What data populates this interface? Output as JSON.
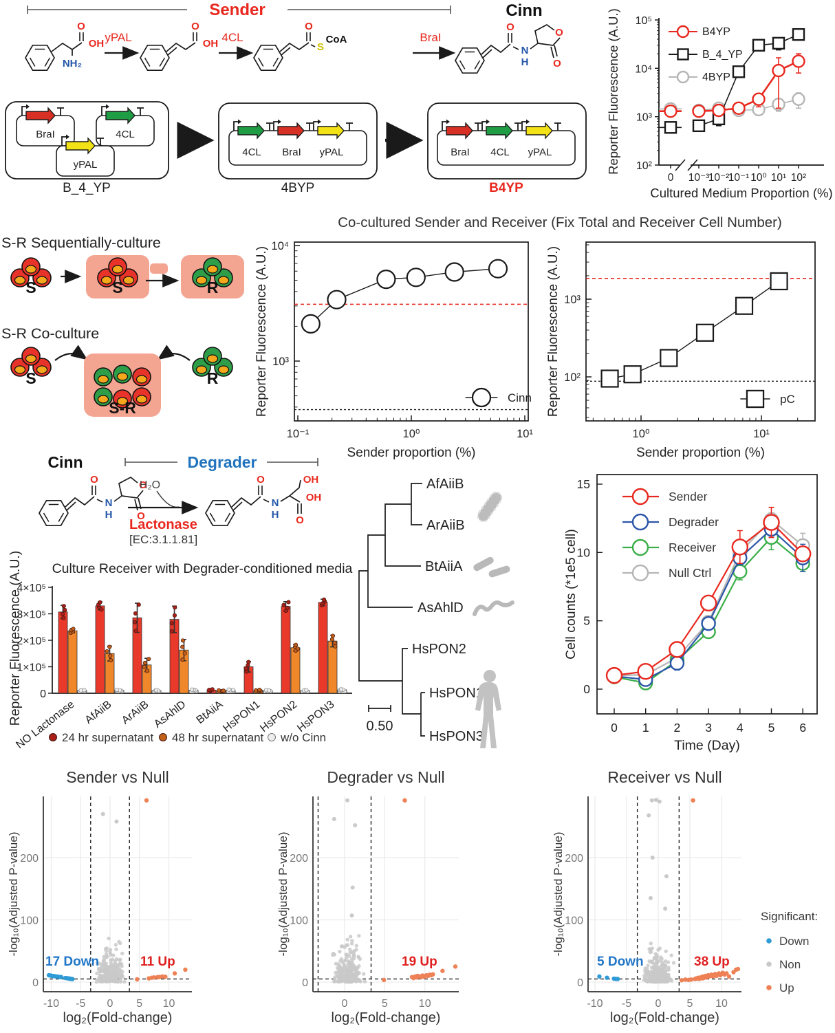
{
  "titles": {
    "sender": "Sender",
    "cinn_top": "Cinn",
    "cocult": "Co-cultured Sender and Receiver (Fix Total and Receiver Cell Number)",
    "seq_culture": "S-R Sequentially-culture",
    "co_culture": "S-R Co-culture",
    "cinn_mid": "Cinn",
    "degrader": "Degrader",
    "lactonase": "Lactonase",
    "ec_number": "[EC:3.1.1.81]",
    "h2o": "H₂O"
  },
  "pathway": {
    "enzymes": [
      "yPAL",
      "4CL",
      "BraI"
    ]
  },
  "atoms": {
    "O": "O",
    "OH": "OH",
    "NH2": "NH₂",
    "S": "S",
    "CoA": "CoA",
    "N": "N",
    "H": "H"
  },
  "cells": {
    "s": "S",
    "r": "R",
    "sr": "S-R"
  },
  "plasmids": {
    "gene_colors": {
      "BraI": "#d93025",
      "4CL": "#1f9d44",
      "yPAL": "#f3e215"
    },
    "constructs": [
      {
        "name": "B_4_YP",
        "genes": [
          "BraI",
          "4CL",
          "yPAL"
        ],
        "highlight": false
      },
      {
        "name": "4BYP",
        "genes": [
          "4CL",
          "BraI",
          "yPAL"
        ],
        "highlight": false
      },
      {
        "name": "B4YP",
        "genes": [
          "BraI",
          "4CL",
          "yPAL"
        ],
        "highlight": true
      }
    ]
  },
  "tree": {
    "leaves": [
      "AfAiiB",
      "ArAiiB",
      "BtAiiA",
      "AsAhlD",
      "HsPON2",
      "HsPON1",
      "HsPON3"
    ],
    "scale_label": "0.50",
    "icons": [
      "rod-bacterium",
      "two-rod-bacteria",
      "filament-bacterium",
      "human-silhouette"
    ]
  },
  "volcano_legend": {
    "title": "Significant:",
    "items": [
      {
        "label": "Down",
        "color": "#2e9bd6"
      },
      {
        "label": "Non",
        "color": "#c9c9c9"
      },
      {
        "label": "Up",
        "color": "#ee8155"
      }
    ]
  },
  "chart_data": [
    {
      "id": "medium_response",
      "type": "line",
      "xlabel": "Cultured Medium Proportion (%)",
      "ylabel": "Reporter Fluorescence (A.U.)",
      "xtick_labels": [
        "0",
        "10⁻³",
        "10⁻²",
        "10⁻¹",
        "10⁰",
        "10¹",
        "10²"
      ],
      "ytick_labels": [
        "10²",
        "10³",
        "10⁴",
        "10⁵"
      ],
      "ylim": [
        100,
        100000
      ],
      "x_axis_break": true,
      "legend_position": "top-left",
      "series": [
        {
          "name": "B4YP",
          "color": "#e8281e",
          "marker": "circle",
          "values": [
            1300,
            1300,
            1350,
            1500,
            2300,
            9000,
            14000
          ],
          "errors": [
            150,
            200,
            150,
            300,
            700,
            7500,
            6000
          ]
        },
        {
          "name": "B_4_YP",
          "color": "#1a1a1a",
          "marker": "square",
          "values": [
            600,
            650,
            900,
            8500,
            30000,
            33000,
            50000
          ],
          "errors": [
            120,
            150,
            250,
            1500,
            6000,
            9000,
            4000
          ]
        },
        {
          "name": "4BYP",
          "color": "#b5b5b5",
          "marker": "circle",
          "values": [
            1450,
            1350,
            1500,
            1350,
            1400,
            1800,
            2300
          ],
          "errors": [
            150,
            120,
            200,
            250,
            300,
            500,
            800
          ]
        }
      ]
    },
    {
      "id": "cocult_cinn",
      "type": "line",
      "legend": "Cinn",
      "marker": "circle",
      "xlabel": "Sender proportion (%)",
      "ylabel": "Reporter Fluorescence (A.U.)",
      "xtick_labels": [
        "10⁻¹",
        "10⁰",
        "10¹"
      ],
      "xticks": [
        0.1,
        1,
        10
      ],
      "ytick_labels": [
        "10⁴",
        "10³"
      ],
      "yticks": [
        10000,
        1000
      ],
      "x": [
        0.13,
        0.22,
        0.6,
        1.1,
        2.4,
        5.8
      ],
      "y": [
        2100,
        3400,
        5100,
        5300,
        5900,
        6300
      ],
      "yerr": [
        260,
        260,
        420,
        750,
        420,
        520
      ],
      "hline_red": 3100,
      "hline_black": 380
    },
    {
      "id": "cocult_pc",
      "type": "line",
      "legend": "pC",
      "marker": "square",
      "xlabel": "Sender proportion (%)",
      "ylabel": "Reporter Fluorescence (A.U.)",
      "xtick_labels": [
        "10⁰",
        "10¹"
      ],
      "xticks": [
        1,
        10
      ],
      "ytick_labels": [
        "10³",
        "10²"
      ],
      "yticks": [
        1000,
        100
      ],
      "x": [
        0.55,
        0.85,
        1.7,
        3.4,
        7.2,
        14
      ],
      "y": [
        95,
        108,
        175,
        370,
        820,
        1700
      ],
      "yerr": [
        18,
        15,
        25,
        70,
        150,
        300
      ],
      "hline_red": 1850,
      "hline_black": 88
    },
    {
      "id": "lactonase_bars",
      "type": "bar",
      "title": "Culture Receiver with Degrader-conditioned media",
      "ylabel": "Reporter Fluorescence (A.U.)",
      "ylim": [
        0,
        400000
      ],
      "ytick_labels": [
        "0",
        "1×10⁵",
        "2×10⁵",
        "3×10⁵",
        "4×10⁵"
      ],
      "categories": [
        "NO Lactonase",
        "AfAiiB",
        "ArAiiB",
        "AsAhlD",
        "BtAiiA",
        "HsPON1",
        "HsPON2",
        "HsPON3"
      ],
      "series": [
        {
          "name": "24 hr supernatant",
          "color": "#e8392b",
          "dot_color": "#a92019",
          "values": [
            307000,
            330000,
            285000,
            279000,
            12000,
            100000,
            328000,
            343000
          ],
          "errors": [
            25000,
            15000,
            55000,
            50000,
            3000,
            20000,
            18000,
            12000
          ]
        },
        {
          "name": "48 hr supernatant",
          "color": "#f0872a",
          "dot_color": "#c2601a",
          "values": [
            236000,
            150000,
            107000,
            163000,
            9000,
            10000,
            172000,
            197000
          ],
          "errors": [
            8000,
            28000,
            25000,
            40000,
            2000,
            3000,
            12000,
            22000
          ]
        },
        {
          "name": "w/o Cinn",
          "color": "#e9e9e9",
          "dot_color": "#9a9a9a",
          "values": [
            10000,
            11000,
            10000,
            12000,
            12000,
            10000,
            10000,
            13000
          ],
          "errors": [
            2000,
            2000,
            2000,
            2000,
            2000,
            2000,
            2000,
            2000
          ]
        }
      ]
    },
    {
      "id": "growth",
      "type": "line",
      "xlabel": "Time (Day)",
      "ylabel": "Cell counts (*1e5 cell)",
      "x": [
        0,
        1,
        2,
        3,
        4,
        5,
        6
      ],
      "xtick_labels": [
        "0",
        "1",
        "2",
        "3",
        "4",
        "5",
        "6"
      ],
      "yticks": [
        0,
        5,
        10,
        15
      ],
      "ytick_labels": [
        "0",
        "5",
        "10",
        "15"
      ],
      "ylim": [
        -1.2,
        16
      ],
      "series": [
        {
          "name": "Sender",
          "color": "#e8281e",
          "values": [
            1.0,
            1.3,
            2.9,
            6.3,
            10.4,
            12.2,
            9.9
          ],
          "errors": [
            0.15,
            0.25,
            0.45,
            0.4,
            1.2,
            1.1,
            0.5
          ]
        },
        {
          "name": "Degrader",
          "color": "#2b56a8",
          "values": [
            0.95,
            0.7,
            1.9,
            4.8,
            9.6,
            11.7,
            9.6
          ],
          "errors": [
            0.1,
            0.35,
            0.5,
            0.3,
            0.5,
            0.6,
            1.0
          ]
        },
        {
          "name": "Receiver",
          "color": "#3aae49",
          "values": [
            0.9,
            0.45,
            2.1,
            4.2,
            8.6,
            11.1,
            9.2
          ],
          "errors": [
            0.1,
            0.3,
            0.3,
            0.35,
            0.6,
            0.9,
            0.6
          ]
        },
        {
          "name": "Null Ctrl",
          "color": "#b5b5b5",
          "values": [
            1.0,
            1.05,
            2.3,
            4.9,
            10.0,
            12.4,
            10.5
          ],
          "errors": [
            0.1,
            0.2,
            0.3,
            0.4,
            0.7,
            0.5,
            0.9
          ]
        }
      ]
    },
    {
      "id": "volcano_sender",
      "type": "scatter",
      "title": "Sender vs Null",
      "xlabel": "log₂(Fold-change)",
      "ylabel": "-log₁₀(Adjusted P-value)",
      "xticks": [
        -10,
        -5,
        0,
        5,
        10
      ],
      "xtick_labels": [
        "-10",
        "-5",
        "0",
        "5",
        "10"
      ],
      "yticks": [
        0,
        100,
        200
      ],
      "ytick_labels": [
        "0",
        "100",
        "200"
      ],
      "thresholds": {
        "x": [
          -3.3,
          3.3
        ],
        "y": 5
      },
      "down_label": "17 Down",
      "up_label": "11 Up",
      "cloud": {
        "n": 240,
        "cx": 0,
        "sd": 1.25,
        "yscale": 14,
        "ymax": 82,
        "xclip": [
          -2.9,
          2.9
        ]
      },
      "gray_outliers": [
        [
          -1.2,
          270
        ],
        [
          1.1,
          258
        ]
      ],
      "down_points": [
        [
          -10.4,
          11
        ],
        [
          -10.1,
          10.5
        ],
        [
          -9.9,
          10
        ],
        [
          -9.6,
          9.8
        ],
        [
          -9.4,
          9.4
        ],
        [
          -9.1,
          9
        ],
        [
          -8.9,
          8.8
        ],
        [
          -8.7,
          8.4
        ],
        [
          -8.5,
          8.2
        ],
        [
          -8.3,
          8
        ],
        [
          -7.6,
          6.6
        ],
        [
          -7.4,
          6.3
        ],
        [
          -7.2,
          6.1
        ],
        [
          -7.0,
          5.8
        ],
        [
          -6.8,
          5.4
        ],
        [
          -6.6,
          5.2
        ],
        [
          -6.4,
          4.9
        ]
      ],
      "up_points": [
        [
          4.6,
          4.5
        ],
        [
          6.6,
          6
        ],
        [
          7.1,
          7
        ],
        [
          7.5,
          7.5
        ],
        [
          8.1,
          8
        ],
        [
          8.4,
          8.2
        ],
        [
          8.9,
          9
        ],
        [
          9.4,
          8.6
        ],
        [
          11.0,
          14
        ],
        [
          12.8,
          20
        ],
        [
          6.2,
          292
        ]
      ]
    },
    {
      "id": "volcano_degrader",
      "type": "scatter",
      "title": "Degrader vs Null",
      "xlabel": "log₂(Fold-change)",
      "ylabel": "-log₁₀(Adjusted P-value)",
      "xticks": [
        0,
        5,
        10
      ],
      "xtick_labels": [
        "0",
        "5",
        "10"
      ],
      "yticks": [
        0,
        100,
        200
      ],
      "ytick_labels": [
        "0",
        "100",
        "200"
      ],
      "thresholds": {
        "x": [
          -3.3,
          3.3
        ],
        "y": 5
      },
      "down_label": "",
      "up_label": "19 Up",
      "cloud": {
        "n": 280,
        "cx": 0.55,
        "sd": 1.0,
        "yscale": 16,
        "ymax": 84,
        "xclip": [
          -1.85,
          3.25
        ]
      },
      "gray_outliers": [
        [
          -1.3,
          262
        ],
        [
          1.3,
          252
        ],
        [
          1.0,
          152
        ],
        [
          0.9,
          107
        ],
        [
          0.35,
          292
        ]
      ],
      "down_points": [],
      "up_points": [
        [
          4.9,
          3.5
        ],
        [
          8.4,
          8
        ],
        [
          8.6,
          6.5
        ],
        [
          8.8,
          9
        ],
        [
          9.0,
          7.5
        ],
        [
          9.1,
          10
        ],
        [
          9.3,
          9
        ],
        [
          9.5,
          8
        ],
        [
          9.7,
          10.5
        ],
        [
          9.9,
          8.5
        ],
        [
          10.0,
          9.5
        ],
        [
          10.2,
          11
        ],
        [
          10.4,
          10
        ],
        [
          10.6,
          12
        ],
        [
          11.0,
          12.5
        ],
        [
          12.2,
          18
        ],
        [
          13.8,
          25
        ],
        [
          10.8,
          11
        ],
        [
          7.5,
          292
        ]
      ]
    },
    {
      "id": "volcano_receiver",
      "type": "scatter",
      "title": "Receiver vs Null",
      "xlabel": "log₂(Fold-change)",
      "ylabel": "-log₁₀(Adjusted P-value)",
      "xticks": [
        -10,
        -5,
        0,
        5,
        10
      ],
      "xtick_labels": [
        "-10",
        "-5",
        "0",
        "5",
        "10"
      ],
      "yticks": [
        0,
        100,
        200
      ],
      "ytick_labels": [
        "0",
        "100",
        "200"
      ],
      "thresholds": {
        "x": [
          -3.3,
          3.3
        ],
        "y": 5
      },
      "down_label": "5 Down",
      "up_label": "38 Up",
      "cloud": {
        "n": 320,
        "cx": 0,
        "sd": 1.15,
        "yscale": 13,
        "ymax": 72,
        "xclip": [
          -2.75,
          2.75
        ]
      },
      "gray_outliers": [
        [
          -1.5,
          268
        ],
        [
          -0.9,
          200
        ],
        [
          1.3,
          170
        ],
        [
          -1.2,
          135
        ],
        [
          1.1,
          118
        ],
        [
          -1.0,
          292
        ],
        [
          -0.35,
          293
        ],
        [
          0.2,
          290
        ]
      ],
      "down_points": [
        [
          -9.3,
          9
        ],
        [
          -8.1,
          7
        ],
        [
          -7.0,
          5.5
        ],
        [
          -6.7,
          5.2
        ],
        [
          -6.4,
          5
        ]
      ],
      "up_points": [
        [
          3.7,
          3
        ],
        [
          4.3,
          4
        ],
        [
          4.8,
          3.5
        ],
        [
          5.2,
          4.2
        ],
        [
          5.8,
          5
        ],
        [
          6.0,
          6
        ],
        [
          6.1,
          5.5
        ],
        [
          6.3,
          7
        ],
        [
          6.5,
          5.2
        ],
        [
          6.8,
          8
        ],
        [
          7.0,
          6
        ],
        [
          7.1,
          9
        ],
        [
          7.3,
          7
        ],
        [
          7.5,
          10
        ],
        [
          7.7,
          8
        ],
        [
          7.9,
          11
        ],
        [
          8.0,
          9
        ],
        [
          8.2,
          10
        ],
        [
          8.4,
          12
        ],
        [
          8.6,
          9.5
        ],
        [
          8.8,
          11
        ],
        [
          9.0,
          13
        ],
        [
          9.2,
          10
        ],
        [
          9.4,
          12
        ],
        [
          9.6,
          14
        ],
        [
          9.8,
          11
        ],
        [
          10.0,
          13
        ],
        [
          10.2,
          15
        ],
        [
          10.5,
          12
        ],
        [
          10.8,
          14
        ],
        [
          11.2,
          9
        ],
        [
          11.9,
          16
        ],
        [
          12.3,
          20
        ],
        [
          12.6,
          21
        ],
        [
          7.8,
          9.5
        ],
        [
          8.9,
          10.5
        ],
        [
          9.1,
          11.5
        ],
        [
          5.5,
          292
        ]
      ]
    }
  ]
}
